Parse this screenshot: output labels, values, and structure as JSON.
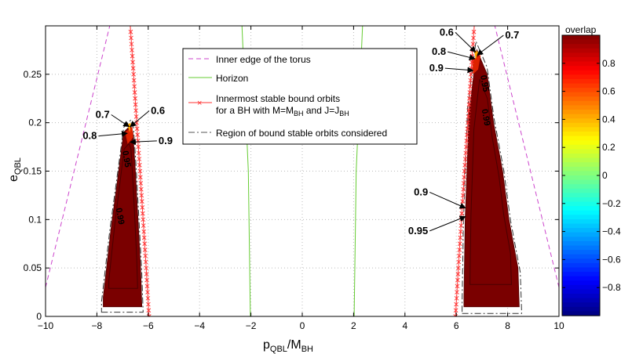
{
  "chart_data": {
    "type": "contour-map",
    "xlabel": "p",
    "xlabel_sub": "QBL",
    "xlabel_sep": "/M",
    "xlabel_sub2": "BH",
    "ylabel": "e",
    "ylabel_sub": "QBL",
    "xlim": [
      -10,
      10
    ],
    "ylim": [
      0,
      0.3
    ],
    "xticks": [
      -10,
      -8,
      -6,
      -4,
      -2,
      0,
      2,
      4,
      6,
      8,
      10
    ],
    "xtick_labels": [
      "−10",
      "−8",
      "−6",
      "−4",
      "−2",
      "0",
      "2",
      "4",
      "6",
      "8",
      "10"
    ],
    "yticks": [
      0,
      0.05,
      0.1,
      0.15,
      0.2,
      0.25
    ],
    "ytick_labels": [
      "0",
      "0.05",
      "0.1",
      "0.15",
      "0.2",
      "0.25"
    ],
    "grid": true,
    "colorbar": {
      "title": "overlap",
      "range": [
        -1,
        1
      ],
      "ticks": [
        0.8,
        0.6,
        0.4,
        0.2,
        0,
        -0.2,
        -0.4,
        -0.6,
        -0.8
      ],
      "tick_labels": [
        "0.8",
        "0.6",
        "0.4",
        "0.2",
        "0",
        "−0.2",
        "−0.4",
        "−0.6",
        "−0.8"
      ]
    },
    "legend": {
      "placement": "top-center",
      "entries": [
        {
          "lines": [
            "Inner edge of the torus"
          ],
          "color": "#cc44cc",
          "style": "dash"
        },
        {
          "lines": [
            "Horizon"
          ],
          "color": "#66cc33",
          "style": "solid"
        },
        {
          "lines": [
            "Innermost stable bound orbits",
            "for a BH with M=M",
            "BH",
            " and J=J",
            "BH"
          ],
          "color": "#ff3333",
          "style": "line-x"
        },
        {
          "lines": [
            "Region of bound stable orbits considered"
          ],
          "color": "#555555",
          "style": "dashdot"
        }
      ]
    },
    "series": [
      {
        "name": "Inner edge of the torus (left)",
        "points": [
          [
            -10,
            0.03
          ],
          [
            -7.5,
            0.3
          ]
        ]
      },
      {
        "name": "Inner edge of the torus (right)",
        "points": [
          [
            10,
            0.03
          ],
          [
            7.5,
            0.3
          ]
        ]
      },
      {
        "name": "Horizon (left)",
        "points": [
          [
            -2.02,
            0
          ],
          [
            -2.1,
            0.15
          ],
          [
            -2.35,
            0.3
          ]
        ]
      },
      {
        "name": "Horizon (right)",
        "points": [
          [
            2.02,
            0
          ],
          [
            2.1,
            0.15
          ],
          [
            2.35,
            0.3
          ]
        ]
      },
      {
        "name": "ISBO (left)",
        "points": [
          [
            -5.97,
            0
          ],
          [
            -6.08,
            0.05
          ],
          [
            -6.2,
            0.1
          ],
          [
            -6.32,
            0.15
          ],
          [
            -6.45,
            0.2
          ],
          [
            -6.57,
            0.25
          ],
          [
            -6.7,
            0.3
          ]
        ]
      },
      {
        "name": "ISBO (right)",
        "points": [
          [
            5.97,
            0
          ],
          [
            6.08,
            0.05
          ],
          [
            6.2,
            0.1
          ],
          [
            6.32,
            0.15
          ],
          [
            6.45,
            0.2
          ],
          [
            6.57,
            0.25
          ],
          [
            6.7,
            0.3
          ]
        ]
      }
    ],
    "regions": [
      {
        "name": "Left overlap region",
        "overlap": 0.99,
        "outline": [
          [
            -7.75,
            0.01
          ],
          [
            -6.25,
            0.01
          ],
          [
            -6.3,
            0.05
          ],
          [
            -6.4,
            0.1
          ],
          [
            -6.5,
            0.15
          ],
          [
            -6.6,
            0.19
          ],
          [
            -6.7,
            0.197
          ],
          [
            -6.95,
            0.19
          ],
          [
            -7.2,
            0.14
          ],
          [
            -7.45,
            0.09
          ],
          [
            -7.75,
            0.02
          ]
        ]
      },
      {
        "name": "Right overlap region",
        "overlap": 0.99,
        "outline": [
          [
            6.3,
            0.01
          ],
          [
            8.45,
            0.01
          ],
          [
            8.4,
            0.05
          ],
          [
            8.05,
            0.1
          ],
          [
            7.8,
            0.15
          ],
          [
            7.45,
            0.2
          ],
          [
            7.2,
            0.25
          ],
          [
            6.8,
            0.275
          ],
          [
            6.5,
            0.21
          ],
          [
            6.35,
            0.1
          ],
          [
            6.3,
            0.02
          ]
        ]
      }
    ],
    "contour_labels": [
      {
        "text": "0.95",
        "x": -6.95,
        "y": 0.162
      },
      {
        "text": "0.99",
        "x": -7.2,
        "y": 0.103
      },
      {
        "text": "0.95",
        "x": 7.0,
        "y": 0.24
      },
      {
        "text": "0.99",
        "x": 7.05,
        "y": 0.205
      }
    ],
    "annotations": [
      {
        "text": "0.7",
        "x": -7.5,
        "y": 0.205,
        "tx": -6.75,
        "ty": 0.196
      },
      {
        "text": "0.6",
        "x": -5.9,
        "y": 0.209,
        "tx": -6.7,
        "ty": 0.196
      },
      {
        "text": "0.8",
        "x": -8.0,
        "y": 0.183,
        "tx": -6.82,
        "ty": 0.189
      },
      {
        "text": "0.9",
        "x": -5.6,
        "y": 0.178,
        "tx": -6.7,
        "ty": 0.18
      },
      {
        "text": "0.6",
        "x": 5.9,
        "y": 0.29,
        "tx": 6.75,
        "ty": 0.273
      },
      {
        "text": "0.7",
        "x": 7.9,
        "y": 0.287,
        "tx": 6.82,
        "ty": 0.27
      },
      {
        "text": "0.8",
        "x": 5.6,
        "y": 0.27,
        "tx": 6.72,
        "ty": 0.266
      },
      {
        "text": "0.9",
        "x": 5.5,
        "y": 0.253,
        "tx": 6.65,
        "ty": 0.254
      },
      {
        "text": "0.9",
        "x": 4.9,
        "y": 0.125,
        "tx": 6.35,
        "ty": 0.112
      },
      {
        "text": "0.95",
        "x": 4.9,
        "y": 0.085,
        "tx": 6.35,
        "ty": 0.103
      }
    ]
  }
}
